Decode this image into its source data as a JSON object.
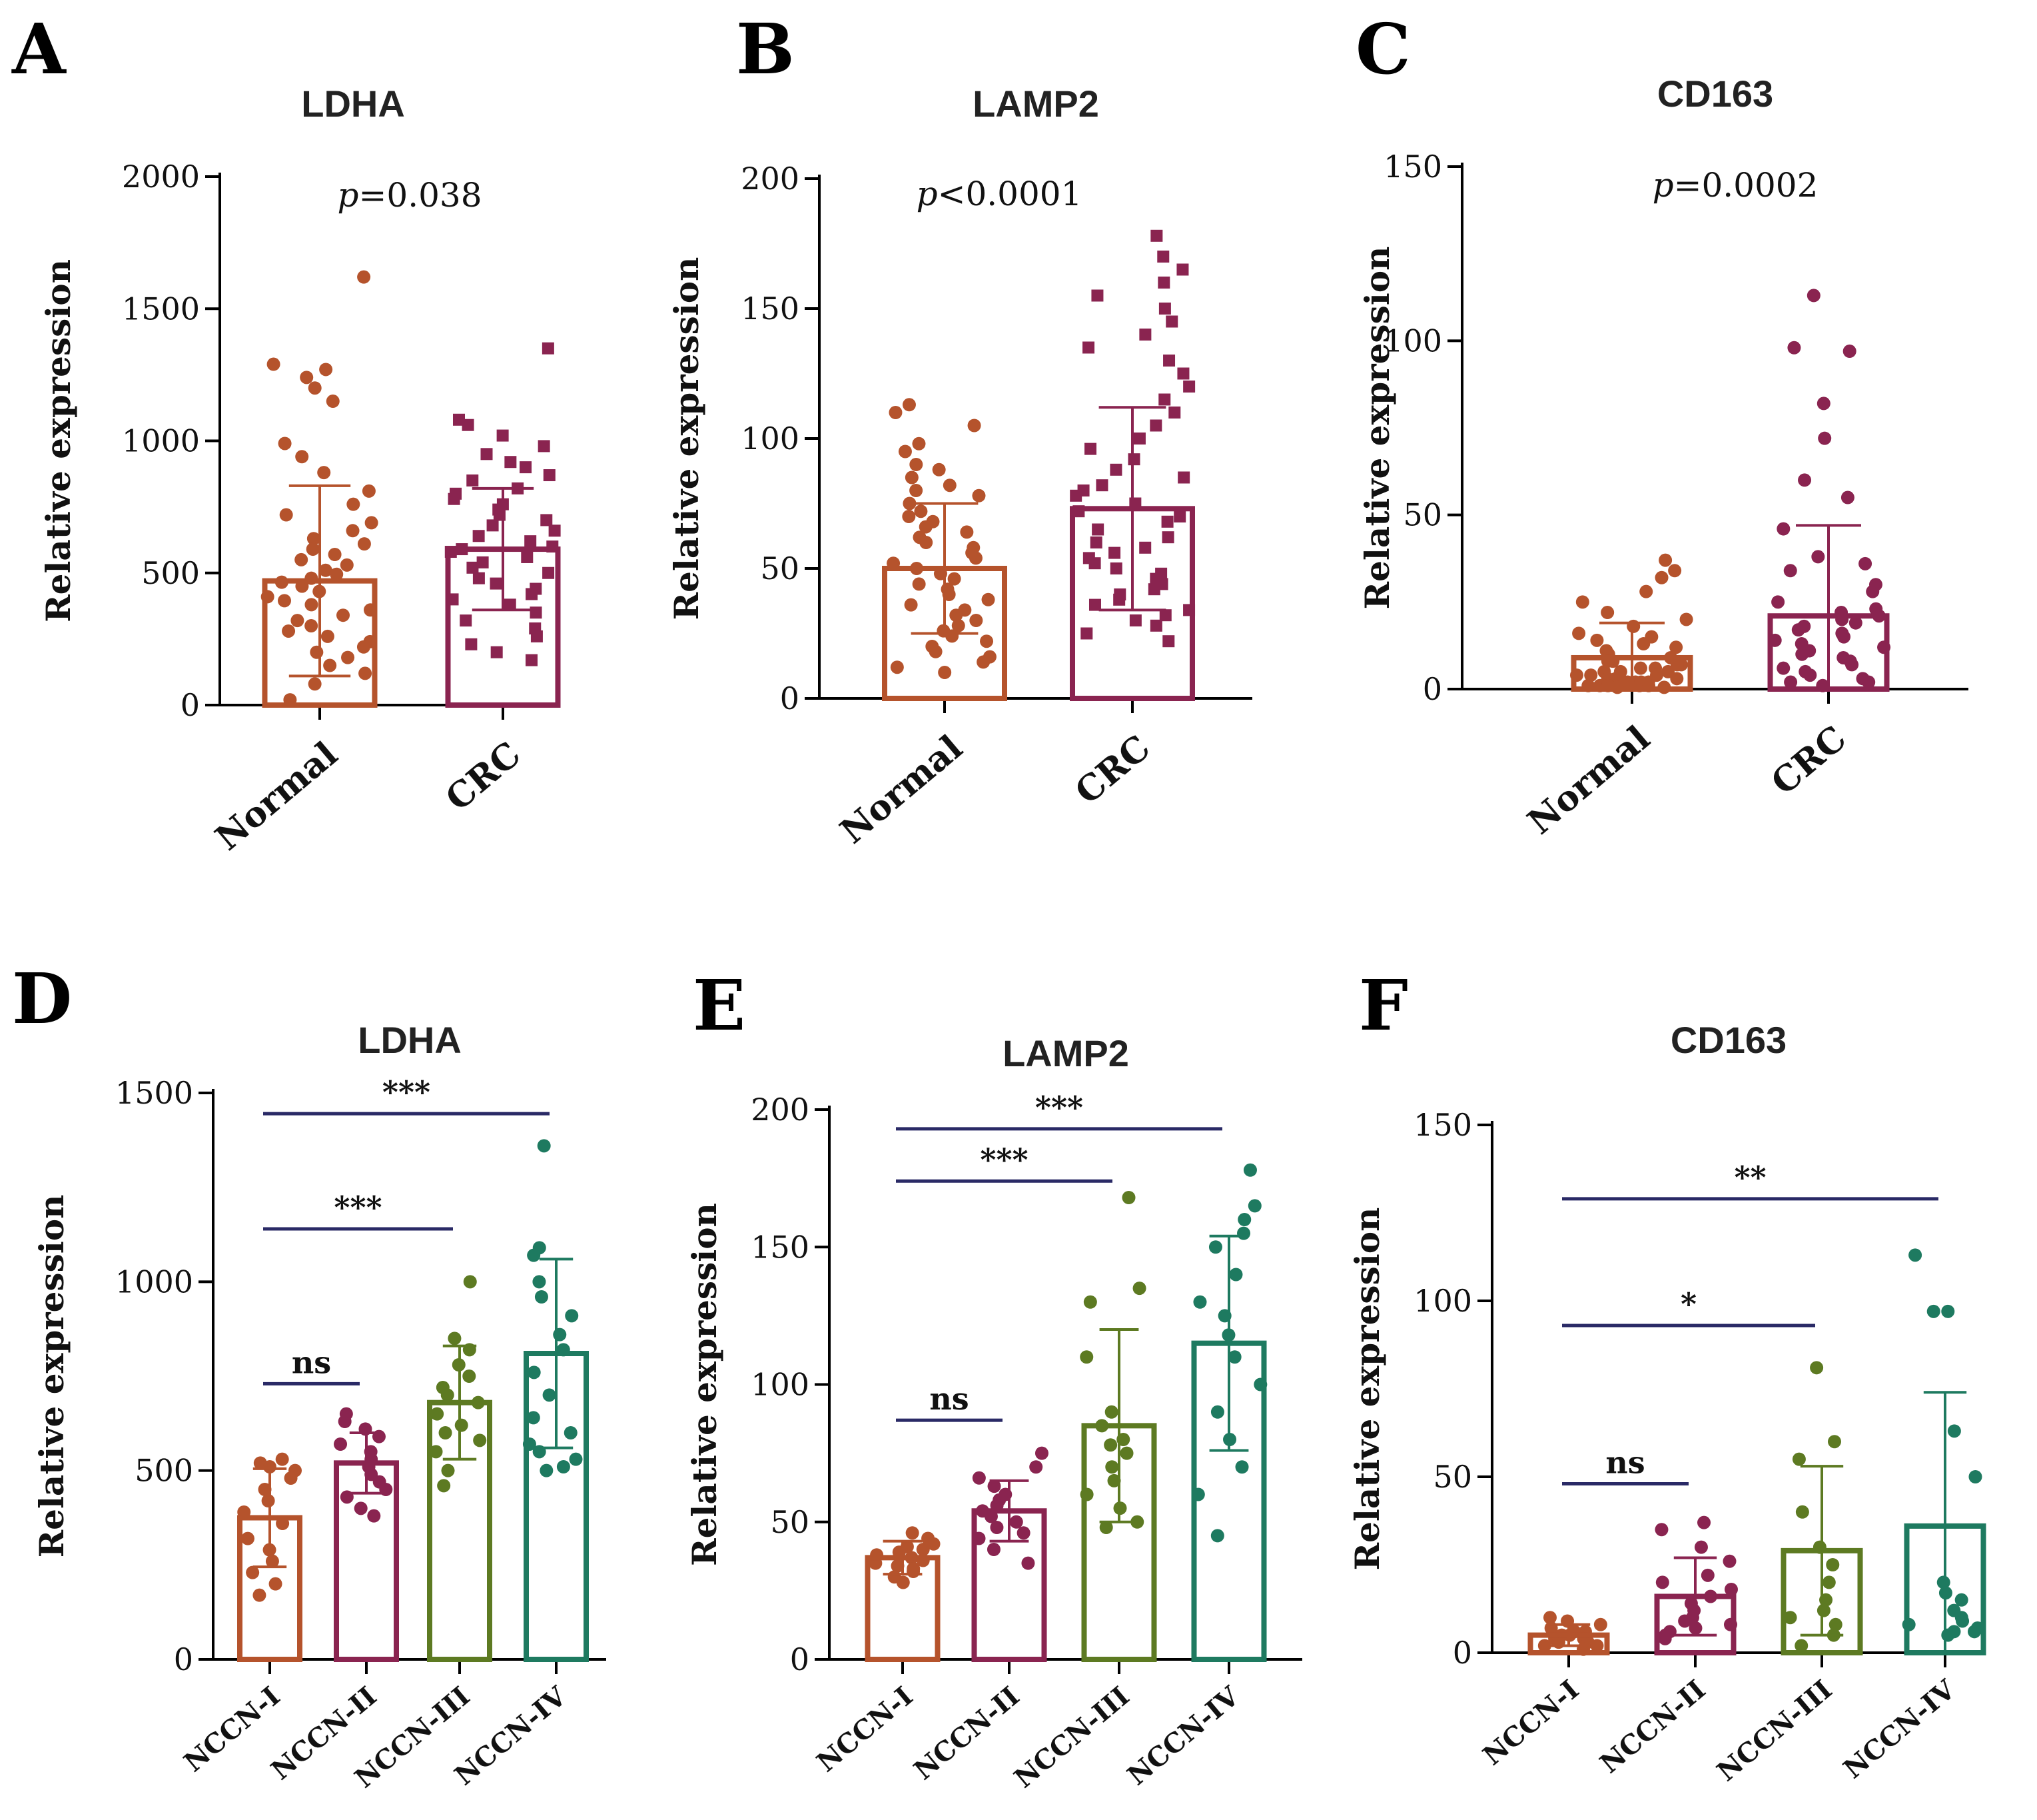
{
  "figure": {
    "panels": [
      "A",
      "B",
      "C",
      "D",
      "E",
      "F"
    ]
  },
  "colors": {
    "normal": "#b5532c",
    "crc": "#8a2450",
    "nccn1": "#b5532c",
    "nccn2": "#8a2450",
    "nccn3": "#5d7a22",
    "nccn4": "#1e7a60",
    "bracket": "#2a2a66",
    "axis": "#000000"
  },
  "chart_data": [
    {
      "panel": "A",
      "type": "bar",
      "title": "LDHA",
      "ylabel": "Relative expression",
      "ylim": [
        0,
        2000
      ],
      "yticks": [
        0,
        500,
        1000,
        1500,
        2000
      ],
      "ytick_labels": [
        "0",
        "500",
        "1000",
        "1500",
        "2000"
      ],
      "categories": [
        "Normal",
        "CRC"
      ],
      "values": [
        470,
        590
      ],
      "sd": [
        360,
        230
      ],
      "annotation": {
        "prefix": "p",
        "text": "=0.038"
      },
      "points": [
        [
          1620,
          1290,
          1270,
          1240,
          1200,
          1150,
          990,
          940,
          880,
          810,
          760,
          720,
          690,
          660,
          630,
          610,
          590,
          570,
          550,
          530,
          510,
          495,
          480,
          465,
          450,
          430,
          410,
          395,
          380,
          360,
          340,
          320,
          300,
          280,
          260,
          240,
          220,
          200,
          180,
          150,
          120,
          80,
          20
        ],
        [
          1350,
          1080,
          1060,
          1020,
          980,
          950,
          920,
          900,
          870,
          850,
          820,
          800,
          780,
          760,
          740,
          720,
          700,
          680,
          660,
          640,
          620,
          600,
          590,
          580,
          560,
          540,
          520,
          500,
          480,
          460,
          440,
          420,
          400,
          380,
          350,
          320,
          290,
          260,
          230,
          200,
          170
        ]
      ]
    },
    {
      "panel": "B",
      "type": "bar",
      "title": "LAMP2",
      "ylabel": "Relative expression",
      "ylim": [
        0,
        200
      ],
      "yticks": [
        0,
        50,
        100,
        150,
        200
      ],
      "ytick_labels": [
        "0",
        "50",
        "100",
        "150",
        "200"
      ],
      "categories": [
        "Normal",
        "CRC"
      ],
      "values": [
        50,
        73
      ],
      "sd": [
        25,
        39
      ],
      "annotation": {
        "prefix": "p",
        "text": "<0.0001"
      },
      "points": [
        [
          113,
          110,
          105,
          98,
          95,
          90,
          88,
          85,
          82,
          80,
          78,
          75,
          72,
          70,
          68,
          66,
          64,
          62,
          60,
          58,
          56,
          54,
          52,
          50,
          48,
          46,
          44,
          42,
          40,
          38,
          36,
          34,
          32,
          30,
          28,
          26,
          24,
          22,
          20,
          18,
          16,
          14,
          12,
          10
        ],
        [
          178,
          170,
          165,
          160,
          155,
          150,
          145,
          140,
          135,
          130,
          125,
          120,
          115,
          110,
          105,
          100,
          96,
          92,
          88,
          85,
          82,
          80,
          78,
          75,
          72,
          70,
          68,
          65,
          62,
          60,
          58,
          56,
          54,
          52,
          50,
          48,
          46,
          44,
          42,
          40,
          38,
          36,
          34,
          32,
          30,
          28,
          25,
          22
        ]
      ]
    },
    {
      "panel": "C",
      "type": "bar",
      "title": "CD163",
      "ylabel": "Relative expression",
      "ylim": [
        0,
        150
      ],
      "yticks": [
        0,
        50,
        100,
        150
      ],
      "ytick_labels": [
        "0",
        "50",
        "100",
        "150"
      ],
      "categories": [
        "Normal",
        "CRC"
      ],
      "values": [
        9,
        21
      ],
      "sd": [
        10,
        26
      ],
      "annotation": {
        "prefix": "p",
        "text": "=0.0002"
      },
      "points": [
        [
          37,
          34,
          32,
          28,
          25,
          22,
          20,
          18,
          16,
          15,
          14,
          13,
          12,
          11,
          10,
          9,
          8,
          8,
          7,
          7,
          6,
          6,
          5,
          5,
          5,
          4,
          4,
          4,
          3,
          3,
          3,
          2,
          2,
          2,
          2,
          1,
          1,
          1,
          1,
          1,
          0.5,
          0.5
        ],
        [
          113,
          98,
          97,
          82,
          72,
          60,
          55,
          46,
          38,
          36,
          34,
          30,
          28,
          25,
          23,
          22,
          21,
          20,
          19,
          18,
          17,
          16,
          15,
          14,
          13,
          12,
          11,
          10,
          9,
          8,
          7,
          6,
          5,
          4,
          3,
          2,
          2,
          1
        ]
      ]
    },
    {
      "panel": "D",
      "type": "bar",
      "title": "LDHA",
      "ylabel": "Relative expression",
      "ylim": [
        0,
        1500
      ],
      "yticks": [
        0,
        500,
        1000,
        1500
      ],
      "ytick_labels": [
        "0",
        "500",
        "1000",
        "1500"
      ],
      "categories": [
        "NCCN-I",
        "NCCN-II",
        "NCCN-III",
        "NCCN-IV"
      ],
      "values": [
        375,
        520,
        680,
        810
      ],
      "sd": [
        130,
        80,
        150,
        250
      ],
      "points": [
        [
          530,
          520,
          510,
          500,
          480,
          450,
          420,
          390,
          360,
          320,
          290,
          260,
          230,
          200,
          170
        ],
        [
          650,
          630,
          610,
          590,
          570,
          550,
          530,
          510,
          490,
          470,
          450,
          430,
          400,
          380
        ],
        [
          1000,
          850,
          820,
          780,
          750,
          720,
          700,
          680,
          650,
          620,
          600,
          580,
          550,
          500,
          460
        ],
        [
          1360,
          1090,
          1070,
          1000,
          960,
          910,
          860,
          820,
          760,
          700,
          640,
          600,
          570,
          550,
          530,
          510,
          500
        ]
      ],
      "brackets": [
        {
          "from": 0,
          "to": 1,
          "label": "ns",
          "y": 730
        },
        {
          "from": 0,
          "to": 2,
          "label": "***",
          "y": 1140
        },
        {
          "from": 0,
          "to": 3,
          "label": "***",
          "y": 1445
        }
      ]
    },
    {
      "panel": "E",
      "type": "bar",
      "title": "LAMP2",
      "ylabel": "Relative expression",
      "ylim": [
        0,
        200
      ],
      "yticks": [
        0,
        50,
        100,
        150,
        200
      ],
      "ytick_labels": [
        "0",
        "50",
        "100",
        "150",
        "200"
      ],
      "categories": [
        "NCCN-I",
        "NCCN-II",
        "NCCN-III",
        "NCCN-IV"
      ],
      "values": [
        37,
        54,
        85,
        115
      ],
      "sd": [
        6,
        11,
        35,
        39
      ],
      "points": [
        [
          46,
          44,
          42,
          41,
          40,
          39,
          38,
          37,
          36,
          35,
          34,
          33,
          32,
          30,
          28
        ],
        [
          75,
          70,
          66,
          63,
          60,
          58,
          56,
          54,
          52,
          50,
          48,
          46,
          44,
          40,
          35
        ],
        [
          168,
          135,
          130,
          110,
          90,
          85,
          80,
          78,
          75,
          70,
          65,
          60,
          55,
          50,
          48
        ],
        [
          178,
          165,
          160,
          155,
          150,
          140,
          130,
          125,
          118,
          110,
          100,
          90,
          80,
          70,
          60,
          45
        ]
      ],
      "brackets": [
        {
          "from": 0,
          "to": 1,
          "label": "ns",
          "y": 87
        },
        {
          "from": 0,
          "to": 2,
          "label": "***",
          "y": 174
        },
        {
          "from": 0,
          "to": 3,
          "label": "***",
          "y": 193
        }
      ]
    },
    {
      "panel": "F",
      "type": "bar",
      "title": "CD163",
      "ylabel": "Relative expression",
      "ylim": [
        0,
        150
      ],
      "yticks": [
        0,
        50,
        100,
        150
      ],
      "ytick_labels": [
        "0",
        "50",
        "100",
        "150"
      ],
      "categories": [
        "NCCN-I",
        "NCCN-II",
        "NCCN-III",
        "NCCN-IV"
      ],
      "values": [
        5,
        16,
        29,
        36
      ],
      "sd": [
        3,
        11,
        24,
        38
      ],
      "points": [
        [
          10,
          9,
          8,
          7,
          6,
          6,
          5,
          5,
          4,
          4,
          3,
          3,
          2,
          2,
          1
        ],
        [
          37,
          35,
          30,
          26,
          22,
          20,
          18,
          16,
          14,
          12,
          10,
          9,
          8,
          7,
          6,
          5,
          4
        ],
        [
          81,
          60,
          55,
          40,
          30,
          25,
          20,
          15,
          12,
          10,
          8,
          5,
          2
        ],
        [
          113,
          97,
          97,
          63,
          50,
          20,
          17,
          15,
          12,
          10,
          9,
          8,
          7,
          6,
          6,
          5
        ]
      ],
      "brackets": [
        {
          "from": 0,
          "to": 1,
          "label": "ns",
          "y": 48
        },
        {
          "from": 0,
          "to": 2,
          "label": "*",
          "y": 93
        },
        {
          "from": 0,
          "to": 3,
          "label": "**",
          "y": 129
        }
      ]
    }
  ]
}
